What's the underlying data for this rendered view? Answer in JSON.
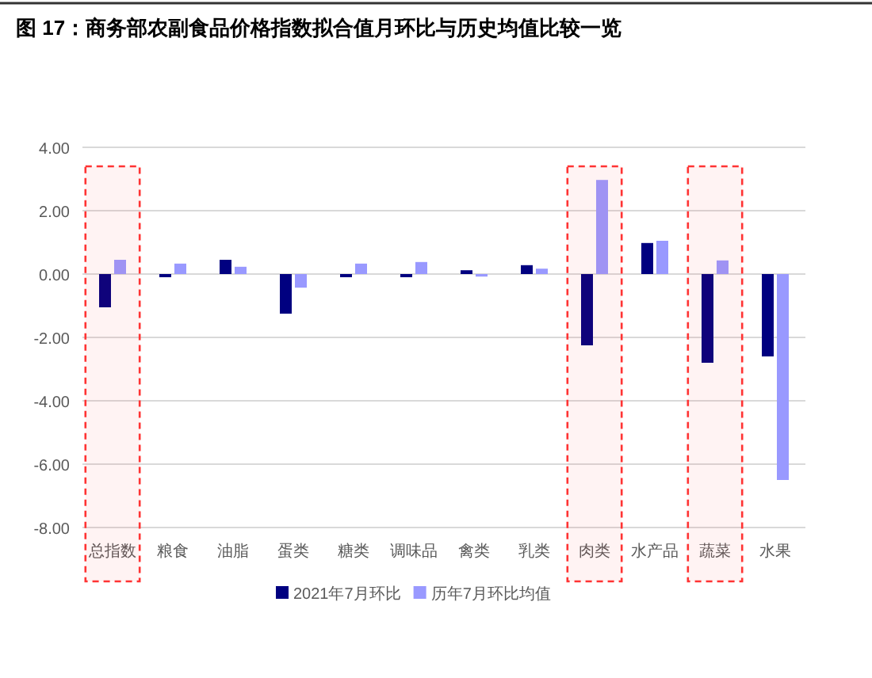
{
  "chart_data": {
    "type": "bar",
    "title": "图 17：商务部农副食品价格指数拟合值月环比与历史均值比较一览",
    "categories": [
      "总指数",
      "粮食",
      "油脂",
      "蛋类",
      "糖类",
      "调味品",
      "禽类",
      "乳类",
      "肉类",
      "水产品",
      "蔬菜",
      "水果"
    ],
    "series": [
      {
        "name": "2021年7月环比",
        "color": "#000080",
        "values": [
          -1.05,
          -0.1,
          0.45,
          -1.25,
          -0.1,
          -0.1,
          0.12,
          0.28,
          -2.25,
          0.98,
          -2.8,
          -2.6
        ]
      },
      {
        "name": "历年7月环比均值",
        "color": "#9999ff",
        "values": [
          0.45,
          0.33,
          0.23,
          -0.43,
          0.33,
          0.38,
          -0.08,
          0.17,
          2.97,
          1.05,
          0.43,
          -6.5
        ]
      }
    ],
    "ylim": [
      -8,
      4
    ],
    "yticks": [
      {
        "value": -8,
        "label": "-8.00"
      },
      {
        "value": -6,
        "label": "-6.00"
      },
      {
        "value": -4,
        "label": "-4.00"
      },
      {
        "value": -2,
        "label": "-2.00"
      },
      {
        "value": 0,
        "label": "0.00"
      },
      {
        "value": 2,
        "label": "2.00"
      },
      {
        "value": 4,
        "label": "4.00"
      }
    ],
    "grid": "y",
    "legend": "bottom",
    "bands": [
      {
        "axis": "x",
        "from": "总指数",
        "to": "总指数",
        "color": "#ff3333"
      },
      {
        "axis": "x",
        "from": "肉类",
        "to": "肉类",
        "color": "#ff3333"
      },
      {
        "axis": "x",
        "from": "蔬菜",
        "to": "蔬菜",
        "color": "#ff3333"
      }
    ]
  }
}
